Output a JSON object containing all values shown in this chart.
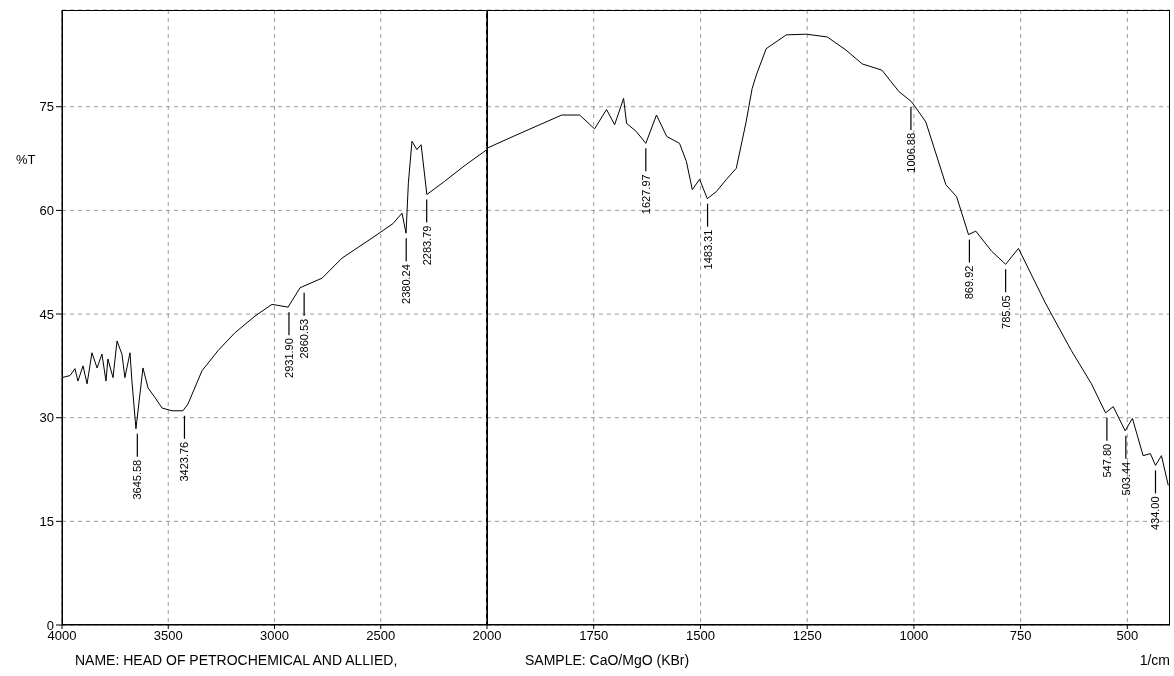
{
  "chart_data": [
    {
      "type": "line",
      "ylabel": "%T",
      "xlim": [
        4000,
        2000
      ],
      "xticks": [
        4000,
        3500,
        3000,
        2500
      ],
      "ylim": [
        0,
        89
      ],
      "yticks": [
        0,
        15,
        30,
        45,
        60,
        75
      ],
      "grid": true,
      "color": "#000000",
      "x": [
        4000,
        3962,
        3939,
        3925,
        3901,
        3882,
        3859,
        3835,
        3812,
        3793,
        3784,
        3760,
        3741,
        3718,
        3704,
        3680,
        3671,
        3652,
        3619,
        3595,
        3562,
        3529,
        3482,
        3431,
        3407,
        3341,
        3266,
        3186,
        3092,
        3012,
        2936,
        2880,
        2776,
        2682,
        2541,
        2442,
        2400,
        2381,
        2370,
        2353,
        2330,
        2310,
        2283,
        2200,
        2100,
        2000
      ],
      "values": [
        35.8,
        36.1,
        37.1,
        35.3,
        37.5,
        34.9,
        39.4,
        37.2,
        39.2,
        35.3,
        38.5,
        35.8,
        41.1,
        39.2,
        35.8,
        39.4,
        35.3,
        28.4,
        37.2,
        34.3,
        32.9,
        31.4,
        31.0,
        31.0,
        32.0,
        36.8,
        39.7,
        42.3,
        44.7,
        46.4,
        46.0,
        48.8,
        50.2,
        53.1,
        56.0,
        58.1,
        59.6,
        56.7,
        64.0,
        70.0,
        68.8,
        69.5,
        62.3,
        64.2,
        66.6,
        68.8
      ],
      "annotations": [
        {
          "text": "3645.58",
          "x": 3645.58,
          "y": 28.4
        },
        {
          "text": "3423.76",
          "x": 3423.76,
          "y": 31.0
        },
        {
          "text": "2931.90",
          "x": 2931.9,
          "y": 46.0
        },
        {
          "text": "2860.53",
          "x": 2860.53,
          "y": 48.8
        },
        {
          "text": "2380.24",
          "x": 2380.24,
          "y": 56.7
        },
        {
          "text": "2283.79",
          "x": 2283.79,
          "y": 62.3
        },
        "NAME: HEAD OF PETROCHEMICAL AND ALLIED,"
      ]
    },
    {
      "type": "line",
      "xlabel": "1/cm",
      "xlim": [
        2000,
        400
      ],
      "xticks": [
        2000,
        1750,
        1500,
        1250,
        1000,
        750,
        500
      ],
      "ylim": [
        0,
        89
      ],
      "yticks": [
        0,
        15,
        30,
        45,
        60,
        75
      ],
      "grid": true,
      "tick_labels": "x",
      "color": "#000000",
      "x": [
        2000,
        1939,
        1869,
        1825,
        1783,
        1748,
        1720,
        1701,
        1680,
        1673,
        1650,
        1628,
        1603,
        1579,
        1549,
        1533,
        1519,
        1502,
        1484,
        1463,
        1439,
        1416,
        1393,
        1379,
        1369,
        1346,
        1299,
        1252,
        1203,
        1159,
        1121,
        1075,
        1035,
        1005,
        972,
        925,
        900,
        872,
        855,
        818,
        785,
        755,
        692,
        631,
        584,
        551,
        533,
        505,
        488,
        463,
        446,
        434,
        420,
        404
      ],
      "values": [
        69.0,
        70.7,
        72.6,
        73.8,
        73.8,
        71.8,
        74.6,
        72.4,
        76.2,
        72.6,
        71.4,
        69.7,
        73.8,
        70.7,
        69.7,
        67.1,
        63.0,
        64.5,
        61.7,
        62.7,
        64.5,
        66.1,
        72.8,
        77.6,
        79.6,
        83.4,
        85.4,
        85.5,
        85.1,
        83.2,
        81.2,
        80.3,
        77.2,
        75.7,
        72.8,
        63.7,
        62.0,
        56.5,
        57.0,
        54.1,
        52.2,
        54.5,
        46.6,
        39.7,
        34.9,
        30.7,
        31.6,
        28.1,
        29.9,
        24.5,
        24.8,
        23.1,
        24.5,
        20.2
      ],
      "annotations": [
        {
          "text": "1627.97",
          "x": 1627.97,
          "y": 69.7
        },
        {
          "text": "1483.31",
          "x": 1483.31,
          "y": 61.7
        },
        {
          "text": "1006.88",
          "x": 1006.88,
          "y": 75.7
        },
        {
          "text": "869.92",
          "x": 869.92,
          "y": 56.5
        },
        {
          "text": "785.05",
          "x": 785.05,
          "y": 52.2
        },
        {
          "text": "547.80",
          "x": 547.8,
          "y": 30.7
        },
        {
          "text": "503.44",
          "x": 503.44,
          "y": 28.1
        },
        {
          "text": "434.00",
          "x": 434,
          "y": 23.1
        },
        "SAMPLE: CaO/MgO (KBr)"
      ]
    }
  ]
}
